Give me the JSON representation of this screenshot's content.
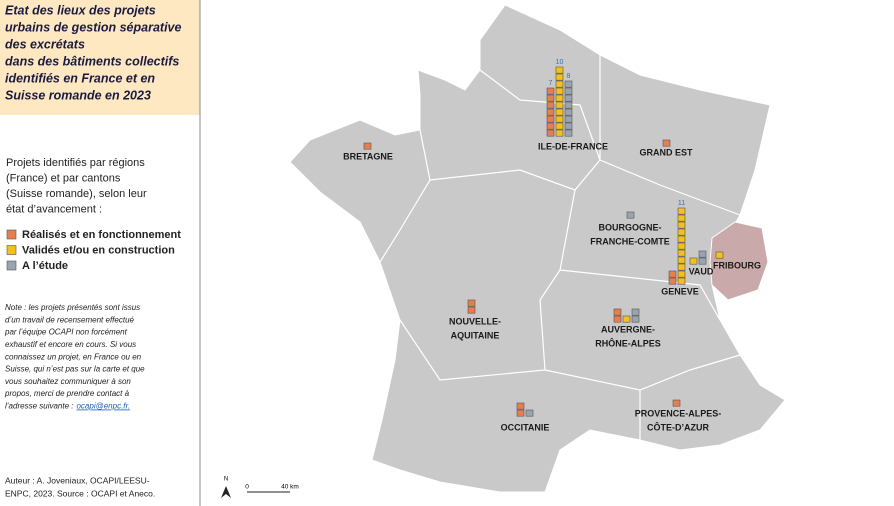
{
  "header": {
    "title_lines": [
      "Etat des lieux des projets",
      "urbains de gestion séparative",
      "des excrétats",
      "dans des bâtiments collectifs",
      "identifiés en France et en",
      "Suisse romande en 2023"
    ]
  },
  "legend": {
    "intro_lines": [
      "Projets identifiés par régions",
      "(France) et par cantons",
      "(Suisse romande), selon leur",
      "état d’avancement :"
    ],
    "items": [
      {
        "label": "Réalisés et en fonctionnement",
        "color": "#e5804e"
      },
      {
        "label": "Validés et/ou en construction",
        "color": "#f2c11c"
      },
      {
        "label": "A l’étude",
        "color": "#9aa4b1"
      }
    ]
  },
  "note": {
    "lines": [
      "Note : les projets présentés sont issus",
      "d’un travail de recensement effectué",
      "par l’équipe OCAPI non forcément",
      "exhaustif et encore en cours. Si vous",
      "connaissez un projet, en France ou en",
      "Suisse, qui n’est pas sur la carte et que",
      "vous souhaitez communiquer à son",
      "propos, merci de prendre contact à",
      "l’adresse suivante :"
    ],
    "email": "ocapi@enpc.fr."
  },
  "author": {
    "lines": [
      "Auteur : A. Joveniaux, OCAPI/LEESU-",
      "ENPC, 2023. Source : OCAPI et Aneco."
    ]
  },
  "map": {
    "north": "N",
    "scale": [
      "0",
      "40 km"
    ],
    "regions": [
      {
        "lines": [
          "ILE-DE-FRANCE"
        ],
        "counts": [
          7,
          10,
          8
        ],
        "value_labels": [
          "7",
          "10",
          "8"
        ]
      },
      {
        "lines": [
          "BRETAGNE"
        ],
        "counts": [
          1,
          0,
          0
        ]
      },
      {
        "lines": [
          "GRAND EST"
        ],
        "counts": [
          1,
          0,
          0
        ]
      },
      {
        "lines": [
          "BOURGOGNE-",
          "FRANCHE-COMTE"
        ],
        "counts": [
          0,
          0,
          1
        ]
      },
      {
        "lines": [
          "GENEVE"
        ],
        "counts": [
          2,
          11,
          0
        ],
        "value_labels": [
          null,
          "11",
          null
        ]
      },
      {
        "lines": [
          "VAUD"
        ],
        "counts": [
          0,
          1,
          2
        ]
      },
      {
        "lines": [
          "FRIBOURG"
        ],
        "counts": [
          0,
          1,
          0
        ]
      },
      {
        "lines": [
          "NOUVELLE-",
          "AQUITAINE"
        ],
        "counts": [
          2,
          0,
          0
        ]
      },
      {
        "lines": [
          "AUVERGNE-",
          "RHÔNE-ALPES"
        ],
        "counts": [
          2,
          1,
          2
        ]
      },
      {
        "lines": [
          "OCCITANIE"
        ],
        "counts": [
          2,
          0,
          1
        ]
      },
      {
        "lines": [
          "PROVENCE-ALPES-",
          "CÔTE-D’AZUR"
        ],
        "counts": [
          1,
          0,
          0
        ]
      }
    ]
  }
}
